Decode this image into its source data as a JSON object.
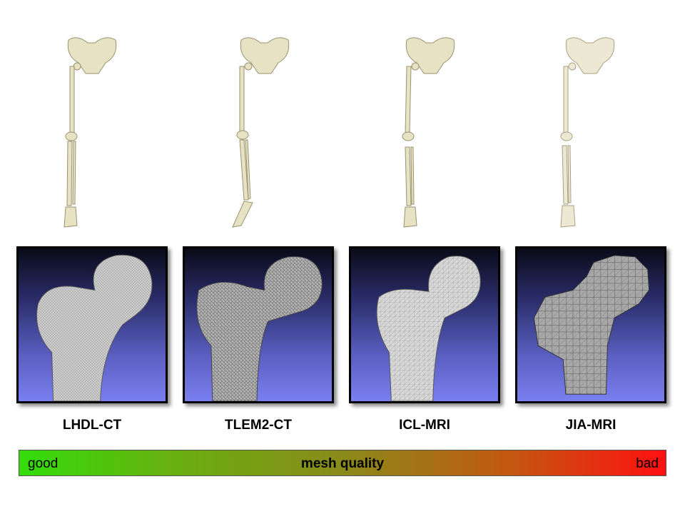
{
  "datasets": [
    {
      "label": "LHDL-CT",
      "texture": "fine-mesh"
    },
    {
      "label": "TLEM2-CT",
      "texture": "noisy-mesh"
    },
    {
      "label": "ICL-MRI",
      "texture": "coarse-mesh"
    },
    {
      "label": "JIA-MRI",
      "texture": "voxel-mesh"
    }
  ],
  "quality_bar": {
    "left_label": "good",
    "center_label": "mesh quality",
    "right_label": "bad",
    "colors": {
      "start": "#33dd0a",
      "end": "#ff1010"
    }
  },
  "colors": {
    "bone": "#e8e2c4",
    "bone_outline": "#9a9370",
    "panel_top": "#0a0a18",
    "panel_bottom": "#7a7ff0"
  }
}
